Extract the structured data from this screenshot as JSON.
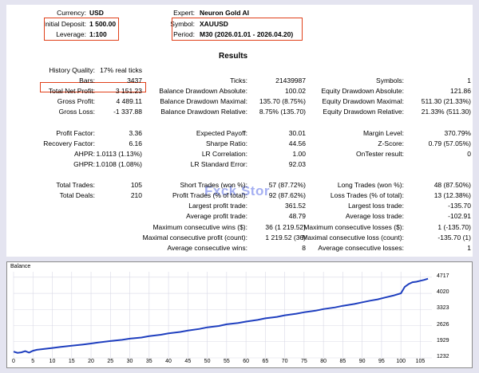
{
  "header": {
    "currency_label": "Currency:",
    "currency_value": "USD",
    "deposit_label": "Initial Deposit:",
    "deposit_value": "1 500.00",
    "leverage_label": "Leverage:",
    "leverage_value": "1:100",
    "expert_label": "Expert:",
    "expert_value": "Neuron Gold AI",
    "symbol_label": "Symbol:",
    "symbol_value": "XAUUSD",
    "period_label": "Period:",
    "period_value": "M30 (2026.01.01 - 2026.04.20)"
  },
  "results_title": "Results",
  "watermark": "Fxck Stor",
  "col1": [
    {
      "label": "History Quality:",
      "value": "17% real ticks"
    },
    {
      "label": "Bars:",
      "value": "3437"
    },
    {
      "label": "Total Net Profit:",
      "value": "3 151.23"
    },
    {
      "label": "Gross Profit:",
      "value": "4 489.11"
    },
    {
      "label": "Gross Loss:",
      "value": "-1 337.88"
    },
    {
      "label": "Profit Factor:",
      "value": "3.36"
    },
    {
      "label": "Recovery Factor:",
      "value": "6.16"
    },
    {
      "label": "AHPR:",
      "value": "1.0113 (1.13%)"
    },
    {
      "label": "GHPR:",
      "value": "1.0108 (1.08%)"
    },
    {
      "label": "Total Trades:",
      "value": "105"
    },
    {
      "label": "Total Deals:",
      "value": "210"
    }
  ],
  "col2": [
    {
      "label": "Ticks:",
      "value": "21439987"
    },
    {
      "label": "Balance Drawdown Absolute:",
      "value": "100.02"
    },
    {
      "label": "Balance Drawdown Maximal:",
      "value": "135.70 (8.75%)"
    },
    {
      "label": "Balance Drawdown Relative:",
      "value": "8.75% (135.70)"
    },
    {
      "label": "Expected Payoff:",
      "value": "30.01"
    },
    {
      "label": "Sharpe Ratio:",
      "value": "44.56"
    },
    {
      "label": "LR Correlation:",
      "value": "1.00"
    },
    {
      "label": "LR Standard Error:",
      "value": "92.03"
    },
    {
      "label": "Short Trades (won %):",
      "value": "57 (87.72%)"
    },
    {
      "label": "Profit Trades (% of total):",
      "value": "92 (87.62%)"
    },
    {
      "label": "Largest profit trade:",
      "value": "361.52"
    },
    {
      "label": "Average profit trade:",
      "value": "48.79"
    },
    {
      "label": "Maximum consecutive wins ($):",
      "value": "36 (1 219.52)"
    },
    {
      "label": "Maximal consecutive profit (count):",
      "value": "1 219.52 (36)"
    },
    {
      "label": "Average consecutive wins:",
      "value": "8"
    }
  ],
  "col3": [
    {
      "label": "Symbols:",
      "value": "1"
    },
    {
      "label": "Equity Drawdown Absolute:",
      "value": "121.86"
    },
    {
      "label": "Equity Drawdown Maximal:",
      "value": "511.30 (21.33%)"
    },
    {
      "label": "Equity Drawdown Relative:",
      "value": "21.33% (511.30)"
    },
    {
      "label": "Margin Level:",
      "value": "370.79%"
    },
    {
      "label": "Z-Score:",
      "value": "0.79 (57.05%)"
    },
    {
      "label": "OnTester result:",
      "value": "0"
    },
    {
      "label": "Long Trades (won %):",
      "value": "48 (87.50%)"
    },
    {
      "label": "Loss Trades (% of total):",
      "value": "13 (12.38%)"
    },
    {
      "label": "Largest loss trade:",
      "value": "-135.70"
    },
    {
      "label": "Average loss trade:",
      "value": "-102.91"
    },
    {
      "label": "Maximum consecutive losses ($):",
      "value": "1 (-135.70)"
    },
    {
      "label": "Maximal consecutive loss (count):",
      "value": "-135.70 (1)"
    },
    {
      "label": "Average consecutive losses:",
      "value": "1"
    }
  ],
  "chart_data": {
    "type": "line",
    "title": "Balance",
    "series_color": "#1f3fbf",
    "y_ticks": [
      1232,
      1929,
      2626,
      3323,
      4020,
      4717
    ],
    "x_ticks": [
      0,
      5,
      10,
      15,
      20,
      25,
      30,
      35,
      40,
      45,
      50,
      55,
      60,
      65,
      70,
      75,
      80,
      85,
      90,
      95,
      100,
      105
    ],
    "xlim": [
      0,
      108
    ],
    "ylim": [
      1232,
      4950
    ],
    "x": [
      0,
      1,
      2,
      3,
      4,
      5,
      6,
      8,
      10,
      12,
      15,
      18,
      20,
      22,
      25,
      28,
      30,
      33,
      35,
      38,
      40,
      43,
      45,
      48,
      50,
      53,
      55,
      58,
      60,
      63,
      65,
      68,
      70,
      73,
      75,
      78,
      80,
      83,
      85,
      88,
      90,
      92,
      94,
      96,
      98,
      100,
      101,
      102,
      103,
      104,
      105,
      106,
      107
    ],
    "y": [
      1500,
      1450,
      1470,
      1520,
      1460,
      1540,
      1580,
      1620,
      1660,
      1700,
      1760,
      1810,
      1850,
      1900,
      1960,
      2010,
      2060,
      2110,
      2170,
      2230,
      2290,
      2350,
      2410,
      2480,
      2550,
      2610,
      2680,
      2740,
      2800,
      2870,
      2940,
      3000,
      3070,
      3140,
      3200,
      3270,
      3340,
      3410,
      3480,
      3560,
      3630,
      3700,
      3760,
      3840,
      3920,
      4020,
      4300,
      4420,
      4500,
      4520,
      4560,
      4600,
      4651
    ]
  }
}
